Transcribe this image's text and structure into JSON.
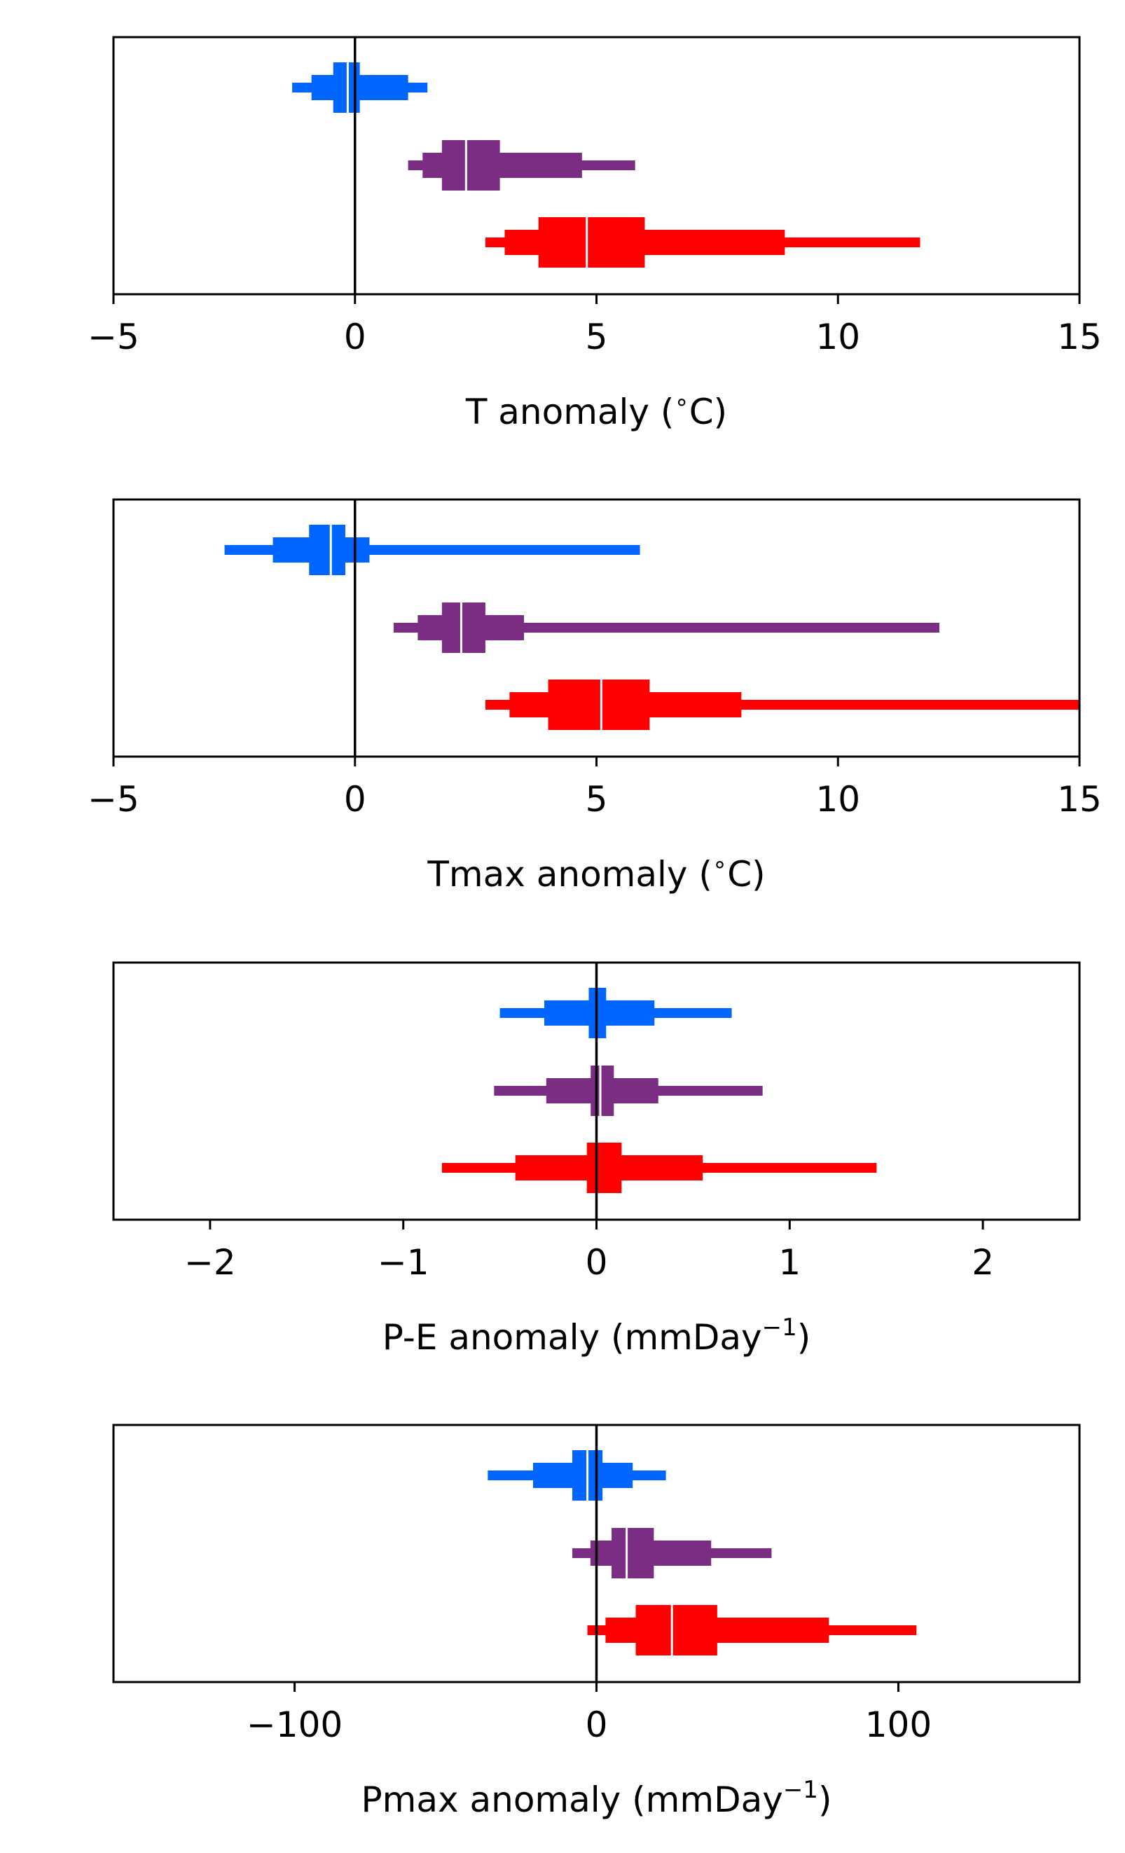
{
  "chart_data": [
    {
      "type": "boxplot",
      "xlabel": "T anomaly ($^\\circ$C)",
      "xlabel_parts": [
        {
          "t": "T anomaly ("
        },
        {
          "t": "∘",
          "sup": true
        },
        {
          "t": "C)"
        }
      ],
      "xlim": [
        -5,
        15
      ],
      "xticks": [
        -5,
        0,
        5,
        10,
        15
      ],
      "xtick_labels": [
        "−5",
        "0",
        "5",
        "10",
        "15"
      ],
      "zero_line": true,
      "series": [
        {
          "color": "#0066ff",
          "whisker": [
            -1.3,
            1.5
          ],
          "outer": [
            -0.9,
            1.1
          ],
          "inner": [
            -0.45,
            0.1
          ],
          "median": -0.15
        },
        {
          "color": "#7b2d84",
          "whisker": [
            1.1,
            5.8
          ],
          "outer": [
            1.4,
            4.7
          ],
          "inner": [
            1.8,
            3.0
          ],
          "median": 2.3
        },
        {
          "color": "#ff0000",
          "whisker": [
            2.7,
            11.7
          ],
          "outer": [
            3.1,
            8.9
          ],
          "inner": [
            3.8,
            6.0
          ],
          "median": 4.8
        }
      ]
    },
    {
      "type": "boxplot",
      "xlabel": "Tmax anomaly ($^\\circ$C)",
      "xlabel_parts": [
        {
          "t": "Tmax anomaly ("
        },
        {
          "t": "∘",
          "sup": true
        },
        {
          "t": "C)"
        }
      ],
      "xlim": [
        -5,
        15
      ],
      "xticks": [
        -5,
        0,
        5,
        10,
        15
      ],
      "xtick_labels": [
        "−5",
        "0",
        "5",
        "10",
        "15"
      ],
      "zero_line": true,
      "series": [
        {
          "color": "#0066ff",
          "whisker": [
            -2.7,
            5.9
          ],
          "outer": [
            -1.7,
            0.3
          ],
          "inner": [
            -0.95,
            -0.2
          ],
          "median": -0.5
        },
        {
          "color": "#7b2d84",
          "whisker": [
            0.8,
            12.1
          ],
          "outer": [
            1.3,
            3.5
          ],
          "inner": [
            1.8,
            2.7
          ],
          "median": 2.2
        },
        {
          "color": "#ff0000",
          "whisker": [
            2.7,
            15.0
          ],
          "outer": [
            3.2,
            8.0
          ],
          "inner": [
            4.0,
            6.1
          ],
          "median": 5.1
        }
      ]
    },
    {
      "type": "boxplot",
      "xlabel": "P-E anomaly (mmDay$^{-1}$)",
      "xlabel_parts": [
        {
          "t": "P-E anomaly (mmDay"
        },
        {
          "t": "−1",
          "sup": true
        },
        {
          "t": ")"
        }
      ],
      "xlim": [
        -2.5,
        2.5
      ],
      "xticks": [
        -2,
        -1,
        0,
        1,
        2
      ],
      "xtick_labels": [
        "−2",
        "−1",
        "0",
        "1",
        "2"
      ],
      "zero_line": true,
      "series": [
        {
          "color": "#0066ff",
          "whisker": [
            -0.5,
            0.7
          ],
          "outer": [
            -0.27,
            0.3
          ],
          "inner": [
            -0.04,
            0.05
          ],
          "median": 0.0
        },
        {
          "color": "#7b2d84",
          "whisker": [
            -0.53,
            0.86
          ],
          "outer": [
            -0.26,
            0.32
          ],
          "inner": [
            -0.03,
            0.09
          ],
          "median": 0.02
        },
        {
          "color": "#ff0000",
          "whisker": [
            -0.8,
            1.45
          ],
          "outer": [
            -0.42,
            0.55
          ],
          "inner": [
            -0.05,
            0.13
          ],
          "median": 0.0
        }
      ]
    },
    {
      "type": "boxplot",
      "xlabel": "Pmax anomaly (mmDay$^{-1}$)",
      "xlabel_parts": [
        {
          "t": "Pmax anomaly (mmDay"
        },
        {
          "t": "−1",
          "sup": true
        },
        {
          "t": ")"
        }
      ],
      "xlim": [
        -160,
        160
      ],
      "xticks": [
        -100,
        0,
        100
      ],
      "xtick_labels": [
        "−100",
        "0",
        "100"
      ],
      "zero_line": true,
      "series": [
        {
          "color": "#0066ff",
          "whisker": [
            -36,
            23
          ],
          "outer": [
            -21,
            12
          ],
          "inner": [
            -8,
            2
          ],
          "median": -3
        },
        {
          "color": "#7b2d84",
          "whisker": [
            -8,
            58
          ],
          "outer": [
            -2,
            38
          ],
          "inner": [
            5,
            19
          ],
          "median": 10
        },
        {
          "color": "#ff0000",
          "whisker": [
            -3,
            106
          ],
          "outer": [
            3,
            77
          ],
          "inner": [
            13,
            40
          ],
          "median": 25
        }
      ]
    }
  ]
}
